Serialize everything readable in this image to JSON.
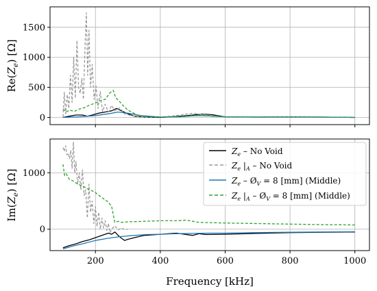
{
  "colors": {
    "no_void_ze": "#000000",
    "no_void_ze_a": "#9a9a9a",
    "void_ze": "#1f77b4",
    "void_ze_a": "#2ca02c",
    "grid": "#b0b0b0"
  },
  "chart_data": [
    {
      "type": "line",
      "panel": "top",
      "ylabel": "Re(Z_e) [Ω]",
      "xlim": [
        60,
        1045
      ],
      "ylim": [
        -120,
        1840
      ],
      "xticks": [
        200,
        400,
        600,
        800,
        1000
      ],
      "yticks": [
        0,
        500,
        1000,
        1500
      ],
      "ytick_labels": [
        "0",
        "500",
        "1000",
        "1500"
      ],
      "grid": true,
      "series": [
        {
          "name": "Z_e – No Void",
          "style": "solid",
          "color_key": "no_void_ze",
          "x": [
            100,
            120,
            140,
            160,
            175,
            190,
            210,
            230,
            250,
            265,
            280,
            300,
            320,
            350,
            400,
            450,
            500,
            530,
            560,
            600,
            700,
            800,
            900,
            1000
          ],
          "y": [
            0,
            20,
            40,
            40,
            20,
            40,
            70,
            90,
            110,
            150,
            110,
            60,
            20,
            5,
            0,
            15,
            40,
            55,
            45,
            10,
            5,
            10,
            5,
            0
          ]
        },
        {
          "name": "Z_e |_A – No Void",
          "style": "dashed",
          "color_key": "no_void_ze_a",
          "x": [
            100,
            104,
            108,
            113,
            118,
            123,
            128,
            133,
            138,
            143,
            148,
            153,
            158,
            163,
            168,
            172,
            176,
            180,
            185,
            190,
            196,
            202,
            208,
            215,
            222,
            230,
            240,
            250,
            260,
            275,
            290,
            310,
            330,
            360,
            400,
            450,
            500,
            530,
            560,
            600,
            700,
            800,
            900,
            1000
          ],
          "y": [
            10,
            420,
            60,
            380,
            150,
            700,
            250,
            1000,
            320,
            1280,
            500,
            400,
            650,
            300,
            1200,
            1740,
            700,
            1450,
            500,
            880,
            300,
            520,
            150,
            430,
            100,
            220,
            90,
            200,
            110,
            160,
            60,
            30,
            10,
            5,
            5,
            30,
            70,
            50,
            30,
            10,
            5,
            10,
            5,
            0
          ]
        },
        {
          "name": "Z_e – Ø_V = 8 [mm] (Middle)",
          "style": "solid",
          "color_key": "void_ze",
          "x": [
            100,
            150,
            200,
            240,
            270,
            300,
            340,
            400,
            460,
            510,
            550,
            600,
            700,
            800,
            900,
            1000
          ],
          "y": [
            0,
            10,
            30,
            60,
            90,
            70,
            30,
            5,
            10,
            30,
            25,
            10,
            5,
            5,
            5,
            0
          ]
        },
        {
          "name": "Z_e |_A – Ø_V = 8 [mm] (Middle)",
          "style": "dashed",
          "color_key": "void_ze_a",
          "x": [
            100,
            110,
            120,
            135,
            150,
            165,
            180,
            200,
            215,
            230,
            245,
            255,
            262,
            270,
            285,
            300,
            330,
            360,
            400,
            450,
            500,
            530,
            560,
            600,
            700,
            800,
            900,
            1000
          ],
          "y": [
            140,
            90,
            120,
            100,
            140,
            160,
            200,
            240,
            280,
            300,
            410,
            450,
            330,
            290,
            200,
            120,
            40,
            10,
            5,
            10,
            30,
            35,
            20,
            10,
            5,
            5,
            5,
            0
          ]
        }
      ]
    },
    {
      "type": "line",
      "panel": "bottom",
      "xlabel": "Frequency [kHz]",
      "ylabel": "Im(Z_e) [Ω]",
      "xlim": [
        60,
        1045
      ],
      "ylim": [
        -380,
        1600
      ],
      "xticks": [
        200,
        400,
        600,
        800,
        1000
      ],
      "xtick_labels": [
        "200",
        "400",
        "600",
        "800",
        "1000"
      ],
      "yticks": [
        0,
        1000
      ],
      "ytick_labels": [
        "0",
        "1000"
      ],
      "grid": true,
      "legend_position": "upper-right",
      "series": [
        {
          "name": "Z_e – No Void",
          "style": "solid",
          "color_key": "no_void_ze",
          "x": [
            100,
            120,
            140,
            160,
            180,
            200,
            220,
            240,
            250,
            260,
            270,
            280,
            290,
            300,
            320,
            350,
            400,
            450,
            500,
            520,
            540,
            600,
            700,
            800,
            900,
            1000
          ],
          "y": [
            -330,
            -290,
            -260,
            -220,
            -190,
            -150,
            -110,
            -70,
            -90,
            -50,
            -110,
            -160,
            -200,
            -180,
            -150,
            -110,
            -90,
            -70,
            -110,
            -80,
            -95,
            -90,
            -75,
            -60,
            -55,
            -50
          ]
        },
        {
          "name": "Z_e |_A – No Void",
          "style": "dashed",
          "color_key": "no_void_ze_a",
          "x": [
            100,
            104,
            108,
            112,
            116,
            120,
            124,
            128,
            132,
            136,
            140,
            145,
            150,
            155,
            160,
            165,
            170,
            175,
            180,
            185,
            190,
            195,
            200,
            205,
            210,
            215,
            220,
            225,
            230,
            235,
            240,
            245,
            250,
            260,
            270,
            280,
            290,
            300
          ],
          "y": [
            1450,
            1380,
            1480,
            1320,
            1350,
            1250,
            1400,
            1080,
            1550,
            1000,
            1200,
            800,
            1000,
            700,
            1050,
            600,
            700,
            200,
            800,
            300,
            500,
            100,
            400,
            50,
            300,
            0,
            200,
            20,
            150,
            -20,
            100,
            -60,
            0,
            60,
            -10,
            20,
            -5,
            0
          ]
        },
        {
          "name": "Z_e – Ø_V = 8 [mm] (Middle)",
          "style": "solid",
          "color_key": "void_ze",
          "x": [
            100,
            130,
            160,
            200,
            240,
            280,
            320,
            360,
            400,
            450,
            500,
            550,
            600,
            700,
            800,
            900,
            1000
          ],
          "y": [
            -350,
            -300,
            -260,
            -200,
            -160,
            -130,
            -110,
            -95,
            -90,
            -80,
            -75,
            -70,
            -70,
            -60,
            -55,
            -50,
            -45
          ]
        },
        {
          "name": "Z_e |_A – Ø_V = 8 [mm] (Middle)",
          "style": "dashed",
          "color_key": "void_ze_a",
          "x": [
            100,
            105,
            110,
            120,
            130,
            140,
            150,
            160,
            170,
            180,
            190,
            200,
            210,
            220,
            230,
            240,
            250,
            255,
            260,
            270,
            280,
            300,
            350,
            400,
            450,
            480,
            500,
            520,
            600,
            700,
            800,
            900,
            1000
          ],
          "y": [
            1150,
            950,
            980,
            880,
            860,
            820,
            790,
            760,
            740,
            700,
            680,
            650,
            600,
            560,
            520,
            480,
            400,
            250,
            120,
            140,
            120,
            130,
            140,
            150,
            150,
            160,
            140,
            120,
            110,
            100,
            90,
            80,
            75
          ]
        }
      ]
    }
  ]
}
